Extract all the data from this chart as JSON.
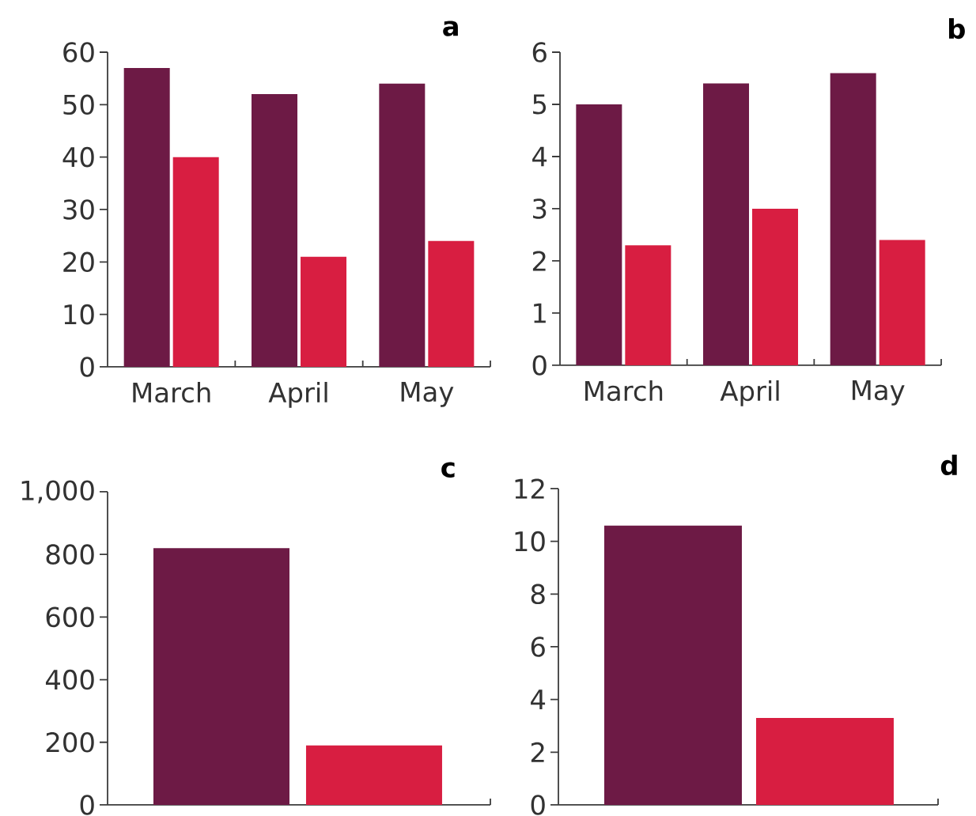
{
  "chart_data": [
    {
      "type": "bar",
      "title": "a",
      "categories": [
        "March",
        "April",
        "May"
      ],
      "series": [
        {
          "color": "#6d1a45",
          "values": [
            57,
            52,
            54
          ]
        },
        {
          "color": "#d81e41",
          "values": [
            40,
            21,
            24
          ]
        }
      ],
      "ylim": [
        0,
        60
      ],
      "yticks": [
        0,
        10,
        20,
        30,
        40,
        50,
        60
      ]
    },
    {
      "type": "bar",
      "title": "b",
      "categories": [
        "March",
        "April",
        "May"
      ],
      "series": [
        {
          "color": "#6d1a45",
          "values": [
            5.0,
            5.4,
            5.6
          ]
        },
        {
          "color": "#d81e41",
          "values": [
            2.3,
            3.0,
            2.4
          ]
        }
      ],
      "ylim": [
        0,
        6
      ],
      "yticks": [
        0,
        1,
        2,
        3,
        4,
        5,
        6
      ]
    },
    {
      "type": "bar",
      "title": "c",
      "categories": [
        null,
        null
      ],
      "values": [
        820,
        190
      ],
      "colors": [
        "#6d1a45",
        "#d81e41"
      ],
      "ylim": [
        0,
        1000
      ],
      "yticks": [
        0,
        200,
        400,
        600,
        800,
        {
          "value": 1000,
          "label": "1,000"
        }
      ]
    },
    {
      "type": "bar",
      "title": "d",
      "categories": [
        null,
        null
      ],
      "values": [
        10.6,
        3.3
      ],
      "colors": [
        "#6d1a45",
        "#d81e41"
      ],
      "ylim": [
        0,
        12
      ],
      "yticks": [
        0,
        2,
        4,
        6,
        8,
        10,
        12
      ]
    }
  ]
}
